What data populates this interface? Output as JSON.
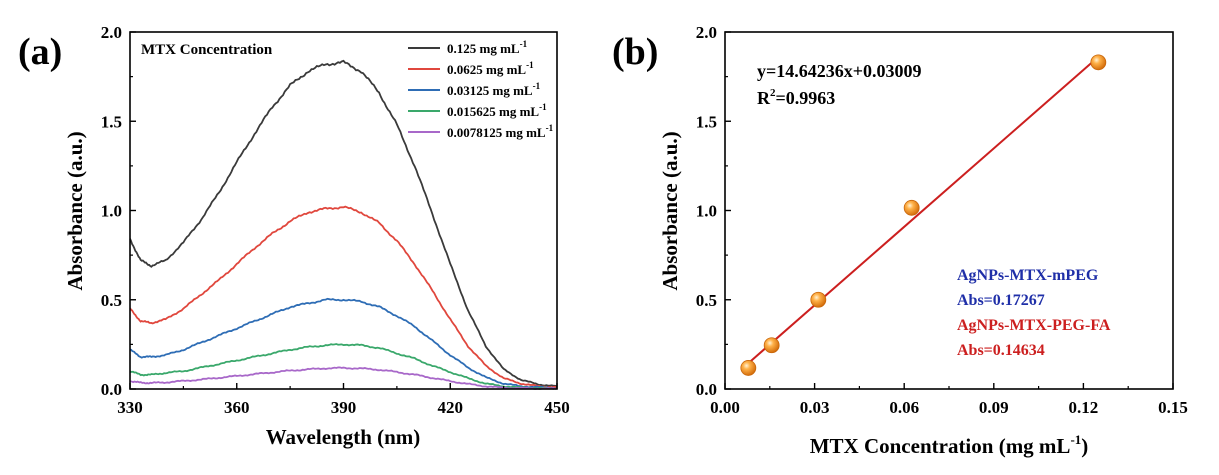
{
  "panels": [
    {
      "label": "(a)",
      "chart_data": {
        "type": "line",
        "xlabel": "Wavelength (nm)",
        "ylabel": "Absorbance (a.u.)",
        "xlim": [
          330,
          450
        ],
        "ylim": [
          0,
          2.0
        ],
        "xticks": [
          330,
          360,
          390,
          420,
          450
        ],
        "yticks": [
          0.0,
          0.5,
          1.0,
          1.5,
          2.0
        ],
        "legend_title": "MTX Concentration",
        "legend_position": "top-right",
        "series": [
          {
            "name": "0.125 mg mL",
            "name_sup": "-1",
            "color": "#3a3a3a",
            "x": [
              330,
              333,
              336,
              340,
              345,
              350,
              355,
              360,
              365,
              370,
              375,
              380,
              385,
              390,
              395,
              400,
              405,
              410,
              415,
              420,
              425,
              430,
              435,
              440,
              445,
              450
            ],
            "y": [
              0.84,
              0.72,
              0.69,
              0.72,
              0.82,
              0.95,
              1.1,
              1.27,
              1.43,
              1.58,
              1.7,
              1.78,
              1.82,
              1.83,
              1.78,
              1.66,
              1.48,
              1.25,
              0.98,
              0.7,
              0.44,
              0.24,
              0.11,
              0.05,
              0.025,
              0.015
            ]
          },
          {
            "name": "0.0625 mg mL",
            "name_sup": "-1",
            "color": "#e0473d",
            "x": [
              330,
              333,
              336,
              340,
              345,
              350,
              355,
              360,
              365,
              370,
              375,
              380,
              385,
              390,
              395,
              400,
              405,
              410,
              415,
              420,
              425,
              430,
              435,
              440,
              445,
              450
            ],
            "y": [
              0.45,
              0.38,
              0.37,
              0.39,
              0.45,
              0.53,
              0.61,
              0.7,
              0.79,
              0.87,
              0.94,
              0.99,
              1.01,
              1.02,
              0.99,
              0.93,
              0.83,
              0.7,
              0.55,
              0.39,
              0.24,
              0.13,
              0.06,
              0.03,
              0.015,
              0.01
            ]
          },
          {
            "name": "0.03125 mg mL",
            "name_sup": "-1",
            "color": "#2e6db5",
            "x": [
              330,
              333,
              336,
              340,
              345,
              350,
              355,
              360,
              365,
              370,
              375,
              380,
              385,
              390,
              395,
              400,
              405,
              410,
              415,
              420,
              425,
              430,
              435,
              440,
              445,
              450
            ],
            "y": [
              0.22,
              0.18,
              0.18,
              0.19,
              0.22,
              0.26,
              0.3,
              0.34,
              0.38,
              0.42,
              0.46,
              0.48,
              0.5,
              0.5,
              0.49,
              0.46,
              0.41,
              0.35,
              0.27,
              0.19,
              0.12,
              0.065,
              0.03,
              0.015,
              0.01,
              0.005
            ]
          },
          {
            "name": "0.015625 mg mL",
            "name_sup": "-1",
            "color": "#3aa86b",
            "x": [
              330,
              333,
              336,
              340,
              345,
              350,
              355,
              360,
              365,
              370,
              375,
              380,
              385,
              390,
              395,
              400,
              405,
              410,
              415,
              420,
              425,
              430,
              435,
              440,
              445,
              450
            ],
            "y": [
              0.1,
              0.08,
              0.08,
              0.09,
              0.1,
              0.12,
              0.14,
              0.16,
              0.18,
              0.2,
              0.22,
              0.235,
              0.245,
              0.25,
              0.245,
              0.23,
              0.2,
              0.17,
              0.13,
              0.095,
              0.06,
              0.03,
              0.015,
              0.008,
              0.005,
              0.003
            ]
          },
          {
            "name": "0.0078125 mg mL",
            "name_sup": "-1",
            "color": "#a868c9",
            "x": [
              330,
              333,
              336,
              340,
              345,
              350,
              355,
              360,
              365,
              370,
              375,
              380,
              385,
              390,
              395,
              400,
              405,
              410,
              415,
              420,
              425,
              430,
              435,
              440,
              445,
              450
            ],
            "y": [
              0.045,
              0.035,
              0.034,
              0.037,
              0.045,
              0.053,
              0.063,
              0.073,
              0.083,
              0.093,
              0.103,
              0.11,
              0.116,
              0.118,
              0.115,
              0.108,
              0.095,
              0.08,
              0.062,
              0.044,
              0.028,
              0.015,
              0.007,
              0.004,
              0.003,
              0.002
            ]
          }
        ]
      }
    },
    {
      "label": "(b)",
      "chart_data": {
        "type": "scatter",
        "xlabel": "MTX Concentration (mg mL",
        "xlabel_sup": "-1",
        "xlabel_end": ")",
        "ylabel": "Absorbance (a.u.)",
        "xlim": [
          0.0,
          0.15
        ],
        "ylim": [
          0.0,
          2.0
        ],
        "xticks": [
          0.0,
          0.03,
          0.06,
          0.09,
          0.12,
          0.15
        ],
        "xtick_labels": [
          "0.00",
          "0.03",
          "0.06",
          "0.09",
          "0.12",
          "0.15"
        ],
        "yticks": [
          0.0,
          0.5,
          1.0,
          1.5,
          2.0
        ],
        "points": {
          "x": [
            0.0078125,
            0.015625,
            0.03125,
            0.0625,
            0.125
          ],
          "y": [
            0.118,
            0.245,
            0.5,
            1.015,
            1.83
          ],
          "color": "#f2921d"
        },
        "fit": {
          "slope": 14.64236,
          "intercept": 0.03009,
          "x_range": [
            0.0078125,
            0.125
          ],
          "color": "#cc1f1f"
        },
        "equation": "y=14.64236x+0.03009",
        "r2_prefix": "R",
        "r2_sup": "2",
        "r2_value": "=0.9963",
        "annotations": [
          {
            "text": "AgNPs-MTX-mPEG",
            "color": "#1f2fa8"
          },
          {
            "text": "Abs=0.17267",
            "color": "#1f2fa8"
          },
          {
            "text": "AgNPs-MTX-PEG-FA",
            "color": "#cc1f1f"
          },
          {
            "text": "Abs=0.14634",
            "color": "#cc1f1f"
          }
        ]
      }
    }
  ]
}
